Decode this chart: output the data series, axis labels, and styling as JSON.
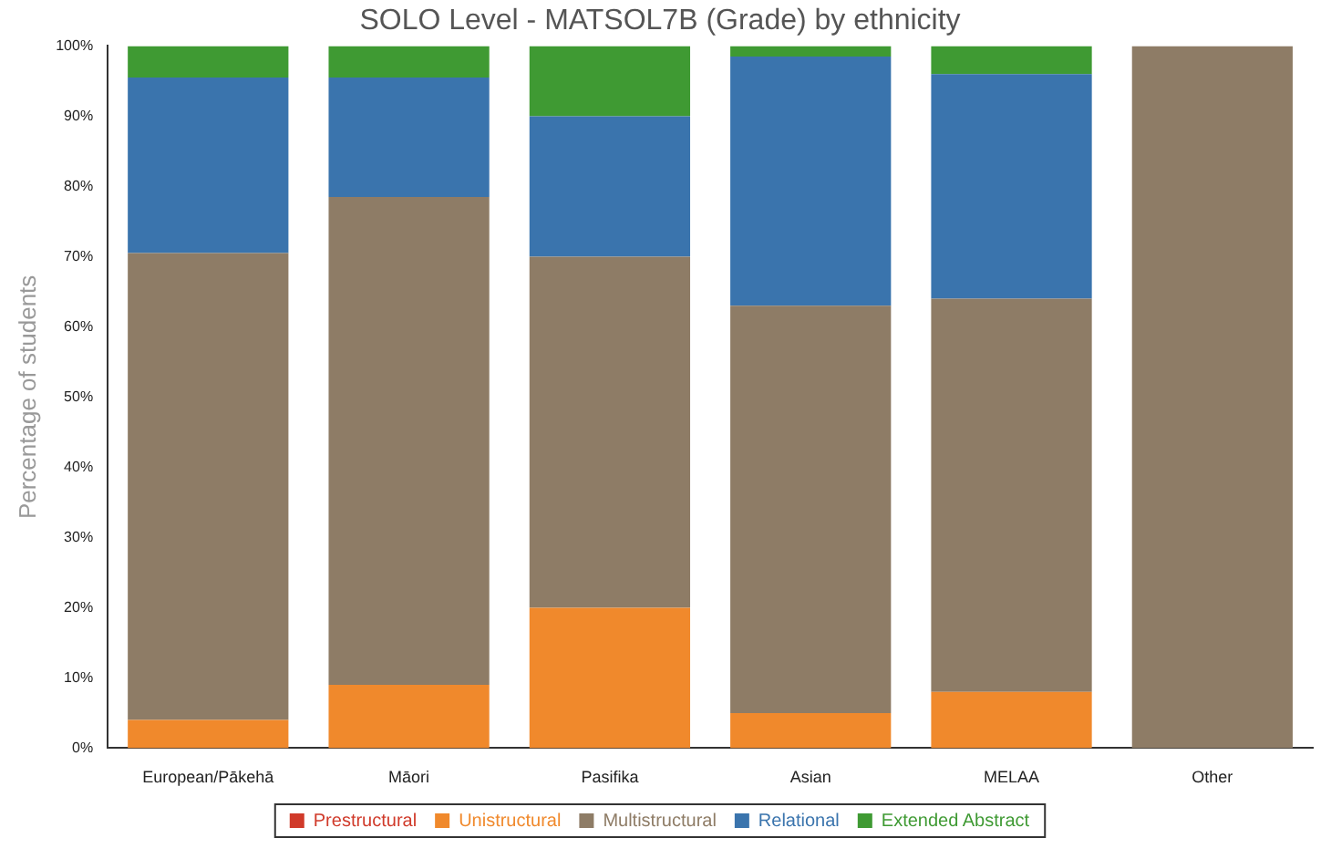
{
  "chart_data": {
    "type": "bar",
    "title": "SOLO Level - MATSOL7B (Grade) by ethnicity",
    "ylabel": "Percentage of students",
    "categories": [
      "European/Pākehā",
      "Māori",
      "Pasifika",
      "Asian",
      "MELAA",
      "Other"
    ],
    "stacked": true,
    "legend": "bottom",
    "grid": false,
    "ylim": [
      0,
      100
    ],
    "yticks": [
      {
        "value": 0,
        "label": "0%"
      },
      {
        "value": 10,
        "label": "10%"
      },
      {
        "value": 20,
        "label": "20%"
      },
      {
        "value": 30,
        "label": "30%"
      },
      {
        "value": 40,
        "label": "40%"
      },
      {
        "value": 50,
        "label": "50%"
      },
      {
        "value": 60,
        "label": "60%"
      },
      {
        "value": 70,
        "label": "70%"
      },
      {
        "value": 80,
        "label": "80%"
      },
      {
        "value": 90,
        "label": "90%"
      },
      {
        "value": 100,
        "label": "100%"
      }
    ],
    "series": [
      {
        "name": "Prestructural",
        "color": "#d03a2a",
        "values": [
          0,
          0,
          0,
          0,
          0,
          0
        ]
      },
      {
        "name": "Unistructural",
        "color": "#f0892c",
        "values": [
          4,
          9,
          20,
          5,
          8,
          0
        ]
      },
      {
        "name": "Multistructural",
        "color": "#8e7c66",
        "values": [
          66.5,
          69.5,
          50,
          58,
          56,
          100
        ]
      },
      {
        "name": "Relational",
        "color": "#3a74ad",
        "values": [
          25,
          17,
          20,
          35.5,
          32,
          0
        ]
      },
      {
        "name": "Extended Abstract",
        "color": "#3f9a33",
        "values": [
          4.5,
          4.5,
          10,
          1.5,
          4,
          0
        ]
      }
    ]
  }
}
